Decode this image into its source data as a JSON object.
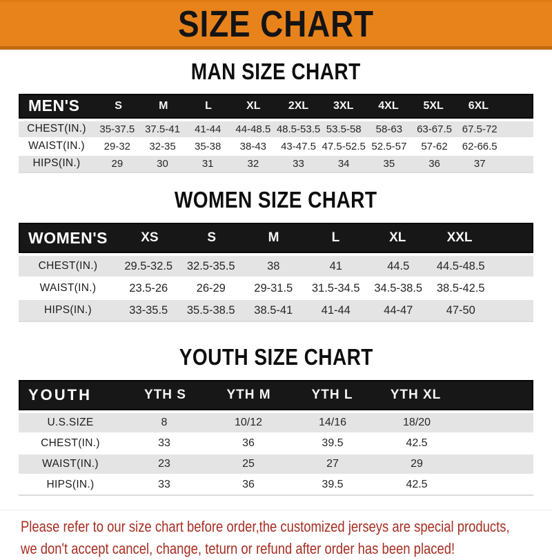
{
  "banner": {
    "title": "SIZE CHART"
  },
  "colors": {
    "banner_bg": "#E8831C",
    "banner_border": "#C2690F",
    "header_bar": "#171717",
    "row_shaded": "#E4E4E4",
    "footer_text": "#A62E22"
  },
  "sections": [
    {
      "title": "MAN SIZE CHART",
      "corner_label": "MEN'S",
      "columns": [
        "S",
        "M",
        "L",
        "XL",
        "2XL",
        "3XL",
        "4XL",
        "5XL",
        "6XL"
      ],
      "rows": [
        {
          "label": "CHEST(IN.)",
          "values": [
            "35-37.5",
            "37.5-41",
            "41-44",
            "44-48.5",
            "48.5-53.5",
            "53.5-58",
            "58-63",
            "63-67.5",
            "67.5-72"
          ]
        },
        {
          "label": "WAIST(IN.)",
          "values": [
            "29-32",
            "32-35",
            "35-38",
            "38-43",
            "43-47.5",
            "47.5-52.5",
            "52.5-57",
            "57-62",
            "62-66.5"
          ]
        },
        {
          "label": "HIPS(IN.)",
          "values": [
            "29",
            "30",
            "31",
            "32",
            "33",
            "34",
            "35",
            "36",
            "37"
          ]
        }
      ]
    },
    {
      "title": "WOMEN SIZE CHART",
      "corner_label": "WOMEN'S",
      "columns": [
        "XS",
        "S",
        "M",
        "L",
        "XL",
        "XXL"
      ],
      "rows": [
        {
          "label": "CHEST(IN.)",
          "values": [
            "29.5-32.5",
            "32.5-35.5",
            "38",
            "41",
            "44.5",
            "44.5-48.5"
          ]
        },
        {
          "label": "WAIST(IN.)",
          "values": [
            "23.5-26",
            "26-29",
            "29-31.5",
            "31.5-34.5",
            "34.5-38.5",
            "38.5-42.5"
          ]
        },
        {
          "label": "HIPS(IN.)",
          "values": [
            "33-35.5",
            "35.5-38.5",
            "38.5-41",
            "41-44",
            "44-47",
            "47-50"
          ]
        }
      ]
    },
    {
      "title": "YOUTH SIZE CHART",
      "corner_label": "YOUTH",
      "columns": [
        "YTH S",
        "YTH M",
        "YTH L",
        "YTH XL"
      ],
      "rows": [
        {
          "label": "U.S.SIZE",
          "values": [
            "8",
            "10/12",
            "14/16",
            "18/20"
          ]
        },
        {
          "label": "CHEST(IN.)",
          "values": [
            "33",
            "36",
            "39.5",
            "42.5"
          ]
        },
        {
          "label": "WAIST(IN.)",
          "values": [
            "23",
            "25",
            "27",
            "29"
          ]
        },
        {
          "label": "HIPS(IN.)",
          "values": [
            "33",
            "36",
            "39.5",
            "42.5"
          ]
        }
      ]
    }
  ],
  "footer": {
    "lines": [
      "Please refer to our size chart before order,the customized jerseys are special products,",
      "we don't accept cancel, change, teturn or refund after order has been placed!"
    ]
  }
}
